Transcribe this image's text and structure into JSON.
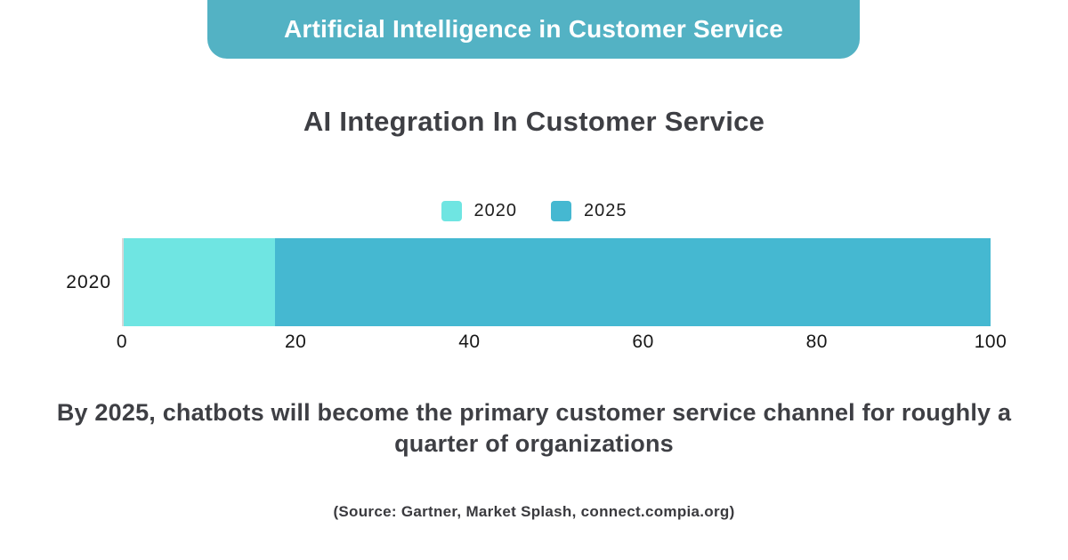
{
  "banner": {
    "title": "Artificial Intelligence in Customer Service"
  },
  "chart": {
    "title": "AI Integration In Customer Service"
  },
  "chart_data": {
    "type": "bar",
    "orientation": "horizontal",
    "stacked": true,
    "title": "AI Integration In Customer Service",
    "categories": [
      "2020"
    ],
    "series": [
      {
        "name": "2020",
        "values": [
          17.5
        ],
        "color": "#6fe5e2"
      },
      {
        "name": "2025",
        "values": [
          82.5
        ],
        "color": "#45b8d1"
      }
    ],
    "xlabel": "",
    "ylabel": "",
    "xlim": [
      0,
      100
    ],
    "x_ticks": [
      0,
      20,
      40,
      60,
      80,
      100
    ],
    "grid": false,
    "legend_position": "top-center",
    "note": "single 100%-wide bar for category 2020: cyan segment 0-17.5, teal segment 17.5-100"
  },
  "headline": {
    "text": "By 2025, chatbots will become the primary customer service channel for roughly a quarter of organizations"
  },
  "source": {
    "text": "(Source: Gartner, Market Splash, connect.compia.org)"
  },
  "colors": {
    "banner_bg": "#53b2c4",
    "bar_2020": "#6fe5e2",
    "bar_2025": "#45b8d1",
    "text_dark": "#3e3f44",
    "axis_line": "#d8d8d8",
    "background": "#ffffff"
  }
}
